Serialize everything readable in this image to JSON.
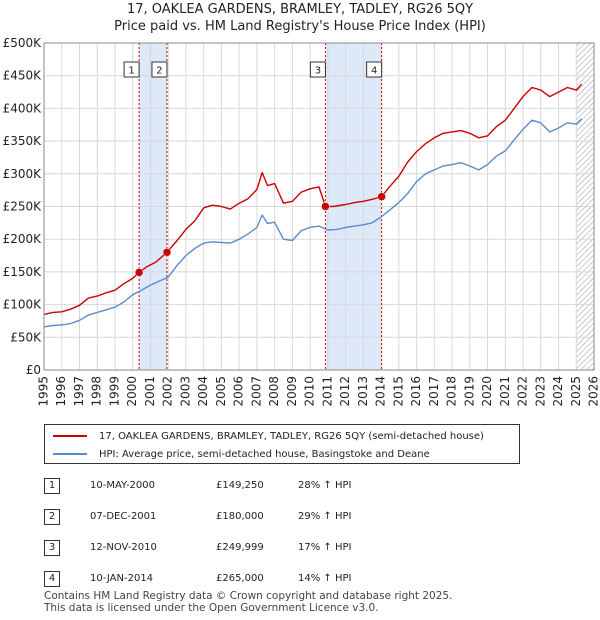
{
  "title_line1": "17, OAKLEA GARDENS, BRAMLEY, TADLEY, RG26 5QY",
  "title_line2": "Price paid vs. HM Land Registry's House Price Index (HPI)",
  "legend": {
    "red_label": "17, OAKLEA GARDENS, BRAMLEY, TADLEY, RG26 5QY (semi-detached house)",
    "blue_label": "HPI: Average price, semi-detached house, Basingstoke and Deane"
  },
  "transactions": [
    {
      "num": "1",
      "date": "10-MAY-2000",
      "price": "£149,250",
      "hpi": "28% ↑ HPI"
    },
    {
      "num": "2",
      "date": "07-DEC-2001",
      "price": "£180,000",
      "hpi": "29% ↑ HPI"
    },
    {
      "num": "3",
      "date": "12-NOV-2010",
      "price": "£249,999",
      "hpi": "17% ↑ HPI"
    },
    {
      "num": "4",
      "date": "10-JAN-2014",
      "price": "£265,000",
      "hpi": "14% ↑ HPI"
    }
  ],
  "footer": {
    "line1": "Contains HM Land Registry data © Crown copyright and database right 2025.",
    "line2": "This data is licensed under the Open Government Licence v3.0."
  },
  "colors": {
    "red": "#cc0000",
    "blue": "#5b8ccc",
    "shade": "#dde8f8",
    "grid": "#d8d8d8"
  },
  "chart_data": {
    "type": "line",
    "title": "17, OAKLEA GARDENS, BRAMLEY, TADLEY, RG26 5QY",
    "subtitle": "Price paid vs. HM Land Registry's House Price Index (HPI)",
    "xlim": [
      1995,
      2026
    ],
    "ylim": [
      0,
      500000
    ],
    "xticks": [
      "1995",
      "1996",
      "1997",
      "1998",
      "1999",
      "2000",
      "2001",
      "2002",
      "2003",
      "2004",
      "2005",
      "2006",
      "2007",
      "2008",
      "2009",
      "2010",
      "2011",
      "2012",
      "2013",
      "2014",
      "2015",
      "2016",
      "2017",
      "2018",
      "2019",
      "2020",
      "2021",
      "2022",
      "2023",
      "2024",
      "2025",
      "2026"
    ],
    "yticks": [
      {
        "value": 0,
        "label": "£0"
      },
      {
        "value": 50000,
        "label": "£50K"
      },
      {
        "value": 100000,
        "label": "£100K"
      },
      {
        "value": 150000,
        "label": "£150K"
      },
      {
        "value": 200000,
        "label": "£200K"
      },
      {
        "value": 250000,
        "label": "£250K"
      },
      {
        "value": 300000,
        "label": "£300K"
      },
      {
        "value": 350000,
        "label": "£350K"
      },
      {
        "value": 400000,
        "label": "£400K"
      },
      {
        "value": 450000,
        "label": "£450K"
      },
      {
        "value": 500000,
        "label": "£500K"
      }
    ],
    "shaded_periods": [
      [
        2000.36,
        2001.93
      ],
      [
        2010.86,
        2014.03
      ]
    ],
    "hatched_from": 2025.0,
    "markers": [
      {
        "label": "1",
        "x": 2000.36,
        "y": 149250
      },
      {
        "label": "2",
        "x": 2001.93,
        "y": 180000
      },
      {
        "label": "3",
        "x": 2010.86,
        "y": 249999
      },
      {
        "label": "4",
        "x": 2014.03,
        "y": 265000
      }
    ],
    "series": [
      {
        "name": "17, OAKLEA GARDENS, BRAMLEY, TADLEY, RG26 5QY (semi-detached house)",
        "color": "#cc0000",
        "x": [
          1995.0,
          1995.5,
          1996.0,
          1996.5,
          1997.0,
          1997.5,
          1998.0,
          1998.5,
          1999.0,
          1999.5,
          2000.0,
          2000.36,
          2000.8,
          2001.3,
          2001.93,
          2002.5,
          2003.0,
          2003.5,
          2004.0,
          2004.5,
          2005.0,
          2005.5,
          2006.0,
          2006.5,
          2007.0,
          2007.3,
          2007.6,
          2008.0,
          2008.5,
          2009.0,
          2009.5,
          2010.0,
          2010.5,
          2010.86,
          2011.3,
          2012.0,
          2012.5,
          2013.0,
          2013.5,
          2014.03,
          2014.5,
          2015.0,
          2015.5,
          2016.0,
          2016.5,
          2017.0,
          2017.5,
          2018.0,
          2018.5,
          2019.0,
          2019.5,
          2020.0,
          2020.5,
          2021.0,
          2021.5,
          2022.0,
          2022.5,
          2023.0,
          2023.5,
          2024.0,
          2024.5,
          2025.0,
          2025.3
        ],
        "values": [
          85000,
          88000,
          89000,
          93000,
          99000,
          110000,
          113000,
          118000,
          122000,
          132000,
          140000,
          149250,
          158000,
          165000,
          180000,
          198000,
          215000,
          228000,
          248000,
          252000,
          250000,
          246000,
          255000,
          262000,
          276000,
          302000,
          282000,
          285000,
          255000,
          258000,
          272000,
          277000,
          280000,
          249999,
          250000,
          253000,
          256000,
          258000,
          261000,
          265000,
          281000,
          296000,
          318000,
          334000,
          346000,
          355000,
          362000,
          364000,
          366000,
          362000,
          355000,
          358000,
          372000,
          382000,
          400000,
          418000,
          432000,
          428000,
          418000,
          425000,
          432000,
          428000,
          437000
        ]
      },
      {
        "name": "HPI: Average price, semi-detached house, Basingstoke and Deane",
        "color": "#5b8ccc",
        "x": [
          1995.0,
          1995.5,
          1996.0,
          1996.5,
          1997.0,
          1997.5,
          1998.0,
          1998.5,
          1999.0,
          1999.5,
          2000.0,
          2000.5,
          2001.0,
          2001.5,
          2002.0,
          2002.5,
          2003.0,
          2003.5,
          2004.0,
          2004.5,
          2005.0,
          2005.5,
          2006.0,
          2006.5,
          2007.0,
          2007.3,
          2007.6,
          2008.0,
          2008.5,
          2009.0,
          2009.5,
          2010.0,
          2010.5,
          2011.0,
          2011.5,
          2012.0,
          2012.5,
          2013.0,
          2013.5,
          2014.0,
          2014.5,
          2015.0,
          2015.5,
          2016.0,
          2016.5,
          2017.0,
          2017.5,
          2018.0,
          2018.5,
          2019.0,
          2019.5,
          2020.0,
          2020.5,
          2021.0,
          2021.5,
          2022.0,
          2022.5,
          2023.0,
          2023.5,
          2024.0,
          2024.5,
          2025.0,
          2025.3
        ],
        "values": [
          66000,
          68000,
          69000,
          71000,
          76000,
          84000,
          88000,
          92000,
          96000,
          104000,
          115000,
          122000,
          130000,
          136000,
          142000,
          160000,
          175000,
          186000,
          194000,
          196000,
          195000,
          194000,
          200000,
          208000,
          218000,
          237000,
          224000,
          226000,
          200000,
          198000,
          213000,
          218000,
          220000,
          214000,
          215000,
          218000,
          220000,
          222000,
          225000,
          234000,
          245000,
          256000,
          270000,
          288000,
          300000,
          306000,
          312000,
          314000,
          317000,
          312000,
          306000,
          314000,
          327000,
          335000,
          352000,
          368000,
          382000,
          378000,
          364000,
          370000,
          378000,
          376000,
          384000
        ]
      }
    ]
  }
}
